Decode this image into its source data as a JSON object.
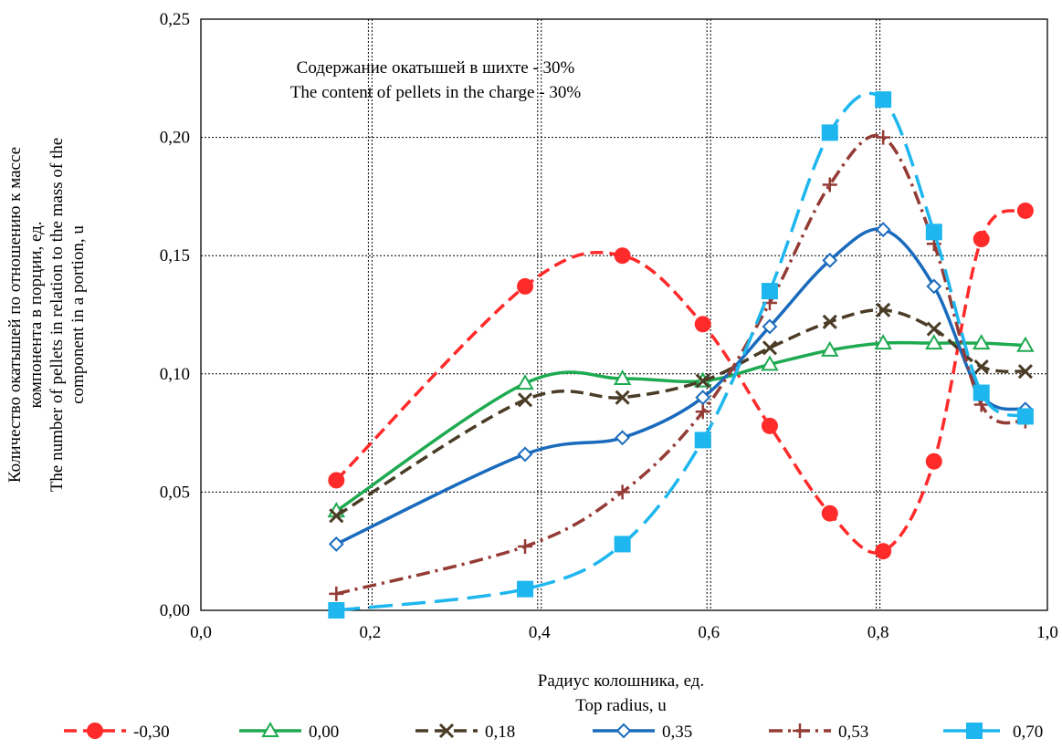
{
  "chart_data": {
    "type": "line",
    "annotation": [
      "Содержание окатышей в шихте - 30%",
      "The content of pellets in the charge - 30%"
    ],
    "xlabel": [
      "Радиус колошника, ед.",
      "Top radius, u"
    ],
    "ylabel": [
      "Количество окатышей по отношению к массе",
      "компонента в порции, ед.",
      "The number of pellets in relation to the mass of the",
      "component in a portion, u"
    ],
    "xlim": [
      0,
      1
    ],
    "ylim": [
      0,
      0.25
    ],
    "x_ticks": [
      "0,0",
      "0,2",
      "0,4",
      "0,6",
      "0,8",
      "1,0"
    ],
    "y_ticks": [
      "0,00",
      "0,05",
      "0,10",
      "0,15",
      "0,20",
      "0,25"
    ],
    "x_tick_values": [
      0,
      0.2,
      0.4,
      0.6,
      0.8,
      1.0
    ],
    "y_tick_values": [
      0,
      0.05,
      0.1,
      0.15,
      0.2,
      0.25
    ],
    "grid": true,
    "legend_position": "bottom",
    "x": [
      0.16,
      0.383,
      0.498,
      0.593,
      0.672,
      0.743,
      0.806,
      0.866,
      0.922,
      0.974
    ],
    "series": [
      {
        "name": "-0,30",
        "color": "#ff2a2a",
        "marker": "circle",
        "dash": "dashed",
        "values": [
          0.055,
          0.137,
          0.15,
          0.121,
          0.078,
          0.041,
          0.025,
          0.063,
          0.157,
          0.169
        ]
      },
      {
        "name": "0,00",
        "color": "#1eaa50",
        "marker": "triangle",
        "dash": "solid",
        "values": [
          0.042,
          0.096,
          0.098,
          0.097,
          0.104,
          0.11,
          0.113,
          0.113,
          0.113,
          0.112
        ]
      },
      {
        "name": "0,18",
        "color": "#4a3c26",
        "marker": "x",
        "dash": "dashed",
        "values": [
          0.04,
          0.089,
          0.09,
          0.097,
          0.111,
          0.122,
          0.127,
          0.119,
          0.103,
          0.101
        ]
      },
      {
        "name": "0,35",
        "color": "#1a6bbd",
        "marker": "diamond",
        "dash": "solid",
        "values": [
          0.028,
          0.066,
          0.073,
          0.09,
          0.12,
          0.148,
          0.161,
          0.137,
          0.091,
          0.085
        ]
      },
      {
        "name": "0,53",
        "color": "#943b35",
        "marker": "plus",
        "dash": "dashdot",
        "values": [
          0.007,
          0.027,
          0.05,
          0.084,
          0.13,
          0.18,
          0.2,
          0.155,
          0.087,
          0.08
        ]
      },
      {
        "name": "0,70",
        "color": "#1eb6ee",
        "marker": "square",
        "dash": "longdash",
        "values": [
          0.0,
          0.009,
          0.028,
          0.072,
          0.135,
          0.202,
          0.216,
          0.16,
          0.092,
          0.082
        ]
      }
    ]
  }
}
